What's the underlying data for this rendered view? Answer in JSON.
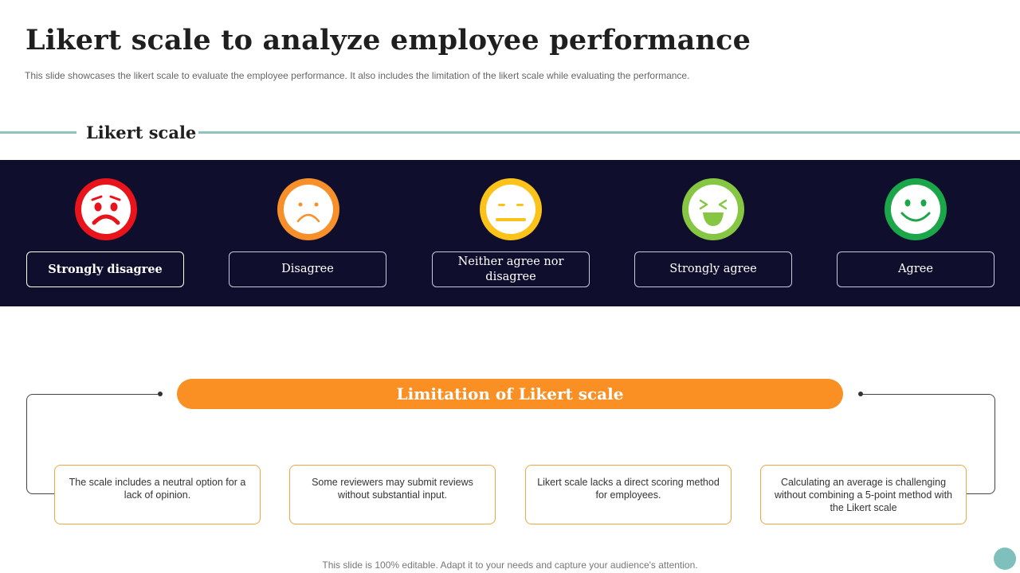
{
  "title": "Likert scale to analyze employee performance",
  "subtitle": "This slide showcases the likert scale to evaluate the employee performance. It also includes the limitation of the likert scale while evaluating the performance.",
  "section_title": "Likert scale",
  "scale": [
    {
      "label": "Strongly disagree",
      "face": "very-sad-face-icon",
      "color": "#e8131b"
    },
    {
      "label": "Disagree",
      "face": "sad-face-icon",
      "color": "#f7902a"
    },
    {
      "label": "Neither agree nor disagree",
      "face": "neutral-face-icon",
      "color": "#fbc21a"
    },
    {
      "label": "Strongly agree",
      "face": "laughing-face-icon",
      "color": "#86c643"
    },
    {
      "label": "Agree",
      "face": "smiling-face-icon",
      "color": "#1ba64a"
    }
  ],
  "limitation_title": "Limitation of Likert scale",
  "limitations": [
    "The scale includes a neutral option for a lack of opinion.",
    "Some reviewers may submit reviews without substantial input.",
    "Likert scale lacks a direct scoring method for employees.",
    "Calculating an average is challenging without combining a 5-point method with the Likert scale"
  ],
  "footer": "This slide is 100% editable. Adapt it to your needs and capture your audience's attention.",
  "colors": {
    "band": "#0f0f2d",
    "accent": "#fa8f24",
    "line": "#8ec3c0"
  }
}
